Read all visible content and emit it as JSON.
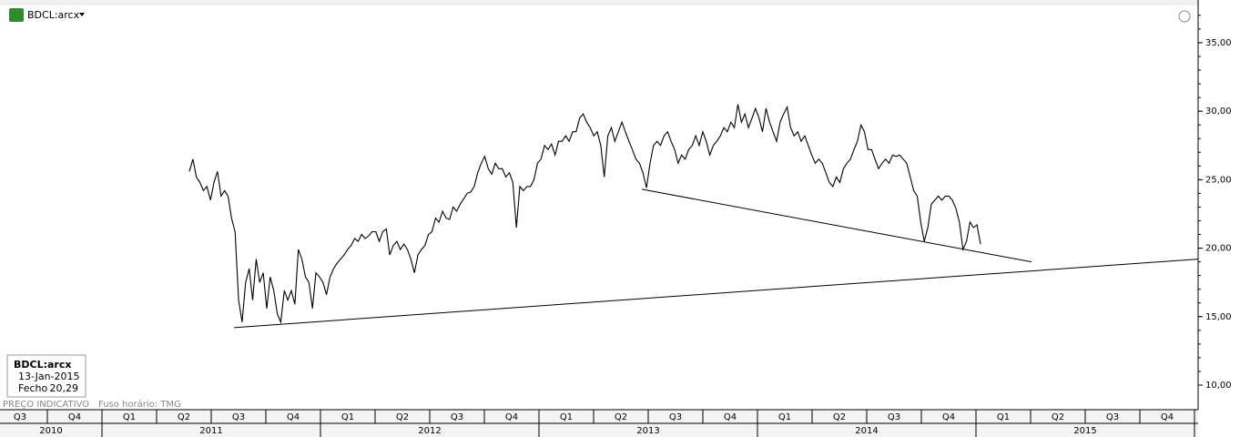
{
  "chart_data": {
    "type": "line",
    "title": "BDCL:arcx",
    "ylim": [
      8.87,
      38.12
    ],
    "yticks": [
      {
        "value": 10,
        "label": "10,00"
      },
      {
        "value": 15,
        "label": "15,00"
      },
      {
        "value": 20,
        "label": "20,00"
      },
      {
        "value": 25,
        "label": "25,00"
      },
      {
        "value": 30,
        "label": "30,00"
      },
      {
        "value": 35,
        "label": "35,00"
      }
    ],
    "quarters": [
      "Q3",
      "Q4",
      "Q1",
      "Q2",
      "Q3",
      "Q4",
      "Q1",
      "Q2",
      "Q3",
      "Q4",
      "Q1",
      "Q2",
      "Q3",
      "Q4",
      "Q1",
      "Q2",
      "Q3",
      "Q4",
      "Q1",
      "Q2",
      "Q3",
      "Q4"
    ],
    "years": [
      "2010",
      "2011",
      "2012",
      "2013",
      "2014",
      "2015"
    ],
    "color": "#000000",
    "values": [
      25.6,
      26.5,
      25.2,
      24.8,
      24.2,
      24.5,
      23.5,
      24.8,
      25.6,
      23.8,
      24.2,
      23.8,
      22.2,
      21.2,
      16.2,
      14.6,
      17.5,
      18.5,
      16.2,
      19.2,
      17.5,
      18.2,
      15.6,
      17.9,
      16.9,
      15.2,
      14.6,
      16.9,
      16.2,
      16.9,
      15.9,
      19.9,
      19.2,
      17.9,
      17.5,
      15.6,
      18.2,
      17.9,
      17.5,
      16.6,
      17.9,
      18.5,
      18.9,
      19.2,
      19.5,
      19.9,
      20.2,
      20.7,
      20.5,
      21.0,
      20.7,
      20.9,
      21.2,
      21.2,
      20.5,
      21.2,
      21.4,
      19.5,
      20.2,
      20.5,
      19.9,
      20.3,
      19.9,
      19.2,
      18.2,
      19.5,
      19.9,
      20.2,
      21.0,
      21.2,
      22.2,
      21.9,
      22.7,
      22.2,
      22.1,
      23.0,
      22.7,
      23.2,
      23.6,
      24.0,
      24.1,
      24.5,
      25.5,
      26.2,
      26.7,
      25.8,
      25.4,
      26.2,
      25.8,
      25.8,
      25.2,
      25.5,
      24.8,
      21.5,
      24.5,
      24.2,
      24.5,
      24.5,
      25.0,
      26.2,
      26.5,
      27.5,
      27.2,
      27.6,
      26.8,
      27.8,
      27.8,
      28.2,
      27.8,
      28.5,
      28.5,
      29.5,
      29.8,
      29.2,
      28.8,
      28.2,
      28.5,
      27.5,
      25.2,
      28.2,
      28.8,
      27.8,
      28.5,
      29.2,
      28.5,
      27.8,
      27.2,
      26.5,
      26.2,
      25.5,
      24.4,
      26.2,
      27.5,
      27.8,
      27.5,
      28.2,
      28.5,
      27.8,
      27.2,
      26.2,
      26.8,
      26.5,
      27.2,
      27.5,
      28.2,
      27.5,
      28.5,
      27.8,
      26.8,
      27.5,
      27.8,
      28.2,
      28.8,
      28.5,
      29.2,
      28.8,
      30.5,
      29.2,
      29.8,
      28.8,
      29.5,
      30.2,
      29.5,
      28.5,
      30.2,
      29.2,
      28.5,
      27.8,
      29.2,
      29.8,
      30.3,
      28.8,
      28.2,
      28.5,
      27.8,
      28.2,
      27.5,
      26.8,
      26.2,
      26.5,
      26.2,
      25.5,
      24.8,
      24.5,
      25.2,
      24.8,
      25.8,
      26.2,
      26.5,
      27.2,
      27.8,
      29.0,
      28.5,
      27.2,
      27.2,
      26.5,
      25.8,
      26.2,
      26.5,
      26.2,
      26.8,
      26.7,
      26.8,
      26.5,
      26.2,
      25.2,
      24.2,
      23.8,
      21.9,
      20.5,
      21.5,
      23.2,
      23.5,
      23.8,
      23.5,
      23.8,
      23.8,
      23.5,
      22.9,
      21.9,
      19.9,
      20.5,
      21.9,
      21.5,
      21.7,
      20.29
    ],
    "trendlines": [
      {
        "values": [
          14.2,
          19.2
        ]
      },
      {
        "values": [
          24.3,
          19.0
        ]
      }
    ],
    "info": {
      "symbol": "BDCL:arcx",
      "date": "13-Jan-2015",
      "close_label": "Fecho",
      "close": "20,29"
    },
    "footer": {
      "note": "PREÇO INDICATIVO",
      "timezone": "Fuso horário: TMG"
    }
  }
}
